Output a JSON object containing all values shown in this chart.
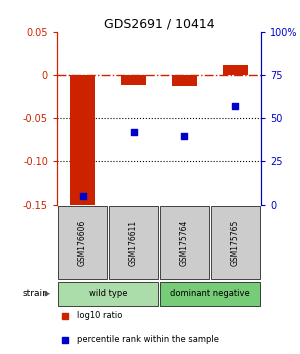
{
  "title": "GDS2691 / 10414",
  "samples": [
    "GSM176606",
    "GSM176611",
    "GSM175764",
    "GSM175765"
  ],
  "log10_ratio": [
    -0.155,
    -0.012,
    -0.013,
    0.012
  ],
  "percentile_rank": [
    5,
    42,
    40,
    57
  ],
  "ylim_left": [
    -0.15,
    0.05
  ],
  "ylim_right": [
    0,
    100
  ],
  "yticks_left": [
    0.05,
    0,
    -0.05,
    -0.1,
    -0.15
  ],
  "yticks_right": [
    100,
    75,
    50,
    25,
    0
  ],
  "groups": [
    {
      "label": "wild type",
      "samples": [
        0,
        1
      ],
      "color": "#aaddaa"
    },
    {
      "label": "dominant negative",
      "samples": [
        2,
        3
      ],
      "color": "#77cc77"
    }
  ],
  "strain_label": "strain",
  "legend_items": [
    {
      "label": "log10 ratio",
      "color": "#cc2200"
    },
    {
      "label": "percentile rank within the sample",
      "color": "#0000cc"
    }
  ],
  "bar_color": "#cc2200",
  "dot_color": "#0000cc",
  "bar_width": 0.5,
  "hline_color": "#cc2200",
  "dotted_lines": [
    -0.05,
    -0.1
  ],
  "left_axis_color": "#cc2200",
  "right_axis_color": "#0000cc",
  "sample_box_color": "#cccccc",
  "bg_color": "#ffffff"
}
